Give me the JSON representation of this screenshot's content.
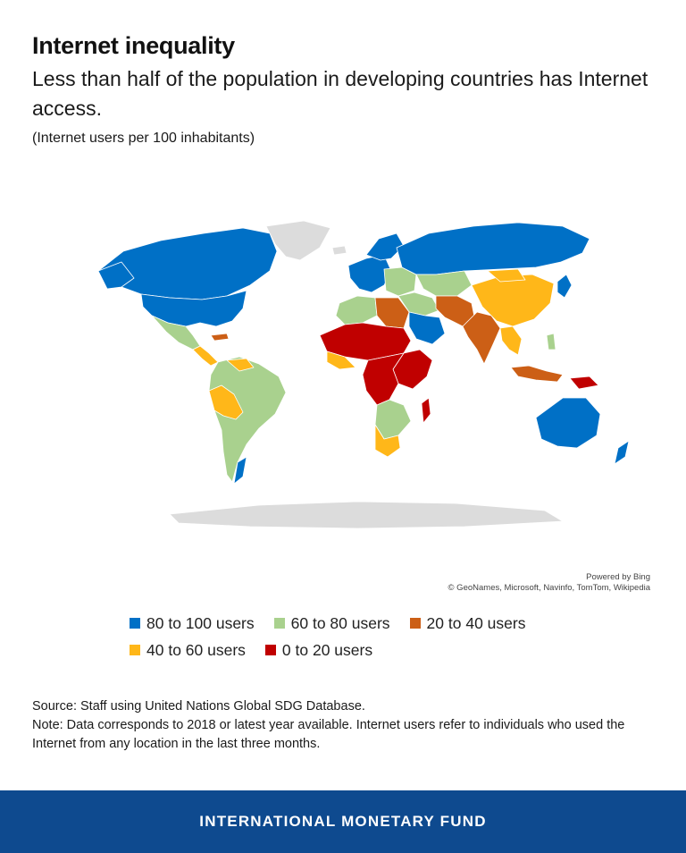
{
  "header": {
    "title": "Internet inequality",
    "subtitle": "Less than half of the population in developing countries has Internet access.",
    "unit": "(Internet users per 100 inhabitants)"
  },
  "map": {
    "colors": {
      "cat80_100": "#0070c6",
      "cat60_80": "#a9d18e",
      "cat40_60": "#ffb719",
      "cat20_40": "#cc5f16",
      "cat0_20": "#c00000",
      "no_data": "#dcdcdc"
    },
    "attribution": {
      "powered": "Powered by Bing",
      "credits": "© GeoNames, Microsoft, Navinfo, TomTom, Wikipedia"
    }
  },
  "legend": {
    "items": [
      {
        "label": "80 to 100 users",
        "color": "#0070c6"
      },
      {
        "label": "60 to 80 users",
        "color": "#a9d18e"
      },
      {
        "label": "20 to 40 users",
        "color": "#cc5f16"
      },
      {
        "label": "40 to 60 users",
        "color": "#ffb719"
      },
      {
        "label": "0 to 20 users",
        "color": "#c00000"
      }
    ]
  },
  "notes": {
    "source": "Source: Staff using United Nations Global SDG Database.",
    "note": "Note: Data corresponds to 2018 or latest year available. Internet users refer to individuals who used the Internet from any location in the last three months."
  },
  "footer": {
    "label": "INTERNATIONAL MONETARY FUND"
  }
}
